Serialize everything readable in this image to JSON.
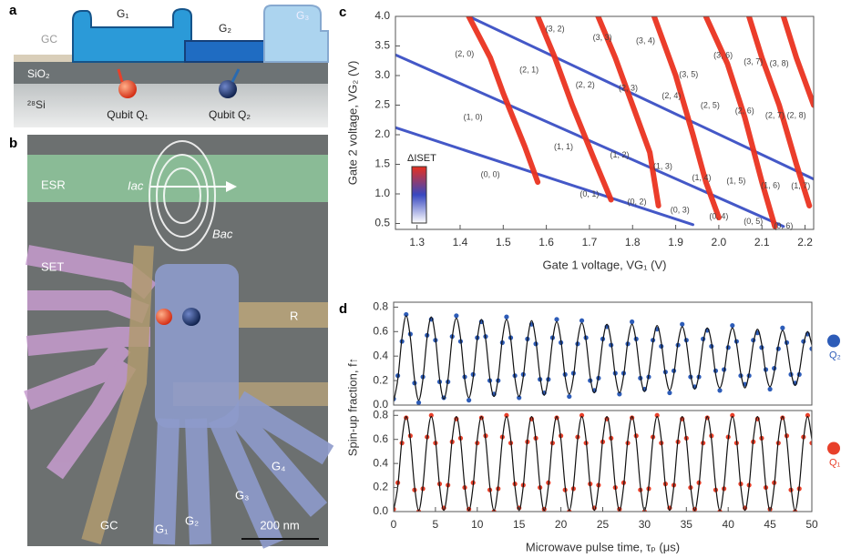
{
  "figure": {
    "panels": [
      "a",
      "b",
      "c",
      "d"
    ],
    "panel_a": {
      "gc": "GC",
      "g1": "G₁",
      "g2": "G₂",
      "g3": "G₃",
      "sio2": "SiO₂",
      "si": "²⁸Si",
      "q1": "Qubit Q₁",
      "q2": "Qubit Q₂"
    },
    "panel_b": {
      "esr": "ESR",
      "iac": "Iac",
      "bac": "Bac",
      "set": "SET",
      "r": "R",
      "g4": "G₄",
      "g3": "G₃",
      "g2": "G₂",
      "g1": "G₁",
      "gc": "GC",
      "scale": "200 nm"
    }
  },
  "chart_data": [
    {
      "type": "line",
      "xlabel": "Gate 1 voltage, VG₁ (V)",
      "ylabel": "Gate 2 voltage, VG₂ (V)",
      "xlim": [
        1.25,
        2.22
      ],
      "ylim": [
        0.4,
        4.0
      ],
      "xticks": [
        1.3,
        1.4,
        1.5,
        1.6,
        1.7,
        1.8,
        1.9,
        {
          "value": 2,
          "label": "2.0"
        },
        2.1,
        2.2
      ],
      "yticks": [
        0.5,
        {
          "value": 1,
          "label": "1.0"
        },
        1.5,
        {
          "value": 2,
          "label": "2.0"
        },
        2.5,
        {
          "value": 3,
          "label": "3.0"
        },
        3.5,
        {
          "value": 4,
          "label": "4.0"
        }
      ],
      "colorbar": {
        "label": "ΔISET",
        "colors": [
          "#e8301e",
          "#3848c0",
          "#ffffff"
        ]
      },
      "series": [
        {
          "color": "#3a4fc4",
          "width": 3,
          "x": [
            1.25,
            1.94
          ],
          "values": [
            2.12,
            0.48
          ]
        },
        {
          "color": "#3a4fc4",
          "width": 3,
          "x": [
            1.25,
            2.15
          ],
          "values": [
            3.35,
            0.45
          ]
        },
        {
          "color": "#3a4fc4",
          "width": 3,
          "x": [
            1.42,
            2.22
          ],
          "values": [
            4.0,
            1.25
          ]
        },
        {
          "color": "#ea3320",
          "width": 6,
          "x": [
            1.42,
            1.47,
            1.5,
            1.55,
            1.58
          ],
          "values": [
            4.0,
            3.3,
            2.7,
            1.8,
            1.2
          ]
        },
        {
          "color": "#ea3320",
          "width": 6,
          "x": [
            1.58,
            1.62,
            1.66,
            1.71,
            1.75
          ],
          "values": [
            4.0,
            3.3,
            2.5,
            1.6,
            0.9
          ]
        },
        {
          "color": "#ea3320",
          "width": 6,
          "x": [
            1.72,
            1.76,
            1.8,
            1.84,
            1.86
          ],
          "values": [
            4.0,
            3.3,
            2.5,
            1.7,
            0.8
          ]
        },
        {
          "color": "#ea3320",
          "width": 6,
          "x": [
            1.85,
            1.9,
            1.94,
            1.97,
            2.0
          ],
          "values": [
            4.0,
            3.0,
            2.0,
            1.2,
            0.6
          ]
        },
        {
          "color": "#ea3320",
          "width": 6,
          "x": [
            1.97,
            2.02,
            2.06,
            2.1,
            2.13
          ],
          "values": [
            4.0,
            3.2,
            2.3,
            1.2,
            0.45
          ]
        },
        {
          "color": "#ea3320",
          "width": 6,
          "x": [
            2.07,
            2.1,
            2.14,
            2.18,
            2.21
          ],
          "values": [
            4.0,
            3.3,
            2.5,
            1.5,
            0.8
          ]
        },
        {
          "color": "#ea3320",
          "width": 6,
          "x": [
            2.15,
            2.18,
            2.22
          ],
          "values": [
            4.0,
            3.3,
            2.5
          ]
        }
      ],
      "annotations": [
        {
          "text": "(3, 2)",
          "x": 1.62,
          "y": 3.78
        },
        {
          "text": "(3, 3)",
          "x": 1.73,
          "y": 3.64
        },
        {
          "text": "(3, 4)",
          "x": 1.83,
          "y": 3.58
        },
        {
          "text": "(2, 0)",
          "x": 1.41,
          "y": 3.36
        },
        {
          "text": "(2, 1)",
          "x": 1.56,
          "y": 3.09
        },
        {
          "text": "(3, 5)",
          "x": 1.93,
          "y": 3.01
        },
        {
          "text": "(3, 6)",
          "x": 2.01,
          "y": 3.34
        },
        {
          "text": "(3, 7)",
          "x": 2.08,
          "y": 3.23
        },
        {
          "text": "(3, 8)",
          "x": 2.14,
          "y": 3.2
        },
        {
          "text": "(2, 2)",
          "x": 1.69,
          "y": 2.84
        },
        {
          "text": "(2, 3)",
          "x": 1.79,
          "y": 2.78
        },
        {
          "text": "(2, 4)",
          "x": 1.89,
          "y": 2.65
        },
        {
          "text": "(2, 5)",
          "x": 1.98,
          "y": 2.49
        },
        {
          "text": "(2, 6)",
          "x": 2.06,
          "y": 2.4
        },
        {
          "text": "(2, 7)",
          "x": 2.13,
          "y": 2.32
        },
        {
          "text": "(2, 8)",
          "x": 2.18,
          "y": 2.32
        },
        {
          "text": "(1, 0)",
          "x": 1.43,
          "y": 2.29
        },
        {
          "text": "(1, 1)",
          "x": 1.64,
          "y": 1.79
        },
        {
          "text": "(1, 2)",
          "x": 1.77,
          "y": 1.65
        },
        {
          "text": "(1, 3)",
          "x": 1.87,
          "y": 1.46
        },
        {
          "text": "(1, 4)",
          "x": 1.96,
          "y": 1.27
        },
        {
          "text": "(1, 5)",
          "x": 2.04,
          "y": 1.21
        },
        {
          "text": "(1, 6)",
          "x": 2.12,
          "y": 1.14
        },
        {
          "text": "(1, 7)",
          "x": 2.19,
          "y": 1.13
        },
        {
          "text": "(0, 0)",
          "x": 1.47,
          "y": 1.32
        },
        {
          "text": "(0, 1)",
          "x": 1.7,
          "y": 0.99
        },
        {
          "text": "(0, 2)",
          "x": 1.81,
          "y": 0.86
        },
        {
          "text": "(0, 3)",
          "x": 1.91,
          "y": 0.72
        },
        {
          "text": "(0, 4)",
          "x": 2.0,
          "y": 0.61
        },
        {
          "text": "(0, 5)",
          "x": 2.08,
          "y": 0.53
        },
        {
          "text": "(0, 6)",
          "x": 2.15,
          "y": 0.45
        }
      ]
    },
    {
      "type": "scatter",
      "ylabel": "Spin-up fraction, f↑",
      "xlim": [
        0,
        50
      ],
      "ylim": [
        0,
        0.84
      ],
      "yticks": [
        {
          "value": 0,
          "label": "0.0"
        },
        0.2,
        0.4,
        0.6,
        0.8
      ],
      "x": [
        0,
        0.5,
        1,
        1.5,
        2,
        2.5,
        3,
        3.5,
        4,
        4.5,
        5,
        5.5,
        6,
        6.5,
        7,
        7.5,
        8,
        8.5,
        9,
        9.5,
        10,
        10.5,
        11,
        11.5,
        12,
        12.5,
        13,
        13.5,
        14,
        14.5,
        15,
        15.5,
        16,
        16.5,
        17,
        17.5,
        18,
        18.5,
        19,
        19.5,
        20,
        20.5,
        21,
        21.5,
        22,
        22.5,
        23,
        23.5,
        24,
        24.5,
        25,
        25.5,
        26,
        26.5,
        27,
        27.5,
        28,
        28.5,
        29,
        29.5,
        30,
        30.5,
        31,
        31.5,
        32,
        32.5,
        33,
        33.5,
        34,
        34.5,
        35,
        35.5,
        36,
        36.5,
        37,
        37.5,
        38,
        38.5,
        39,
        39.5,
        40,
        40.5,
        41,
        41.5,
        42,
        42.5,
        43,
        43.5,
        44,
        44.5,
        45,
        45.5,
        46,
        46.5,
        47,
        47.5,
        48,
        48.5,
        49,
        49.5,
        50
      ],
      "series": [
        {
          "name": "Q₂",
          "color": "#2d5cb8",
          "style": "dot",
          "values": [
            0.05,
            0.24,
            0.52,
            0.74,
            0.58,
            0.18,
            0.02,
            0.23,
            0.57,
            0.7,
            0.53,
            0.19,
            0.06,
            0.19,
            0.56,
            0.73,
            0.52,
            0.23,
            0.04,
            0.25,
            0.55,
            0.68,
            0.56,
            0.2,
            0.09,
            0.2,
            0.51,
            0.72,
            0.55,
            0.24,
            0.06,
            0.25,
            0.54,
            0.66,
            0.5,
            0.21,
            0.1,
            0.21,
            0.55,
            0.7,
            0.51,
            0.25,
            0.07,
            0.26,
            0.5,
            0.69,
            0.55,
            0.2,
            0.12,
            0.22,
            0.54,
            0.64,
            0.49,
            0.26,
            0.09,
            0.26,
            0.5,
            0.68,
            0.54,
            0.22,
            0.13,
            0.23,
            0.53,
            0.62,
            0.48,
            0.27,
            0.1,
            0.28,
            0.49,
            0.66,
            0.53,
            0.23,
            0.15,
            0.23,
            0.54,
            0.61,
            0.48,
            0.28,
            0.12,
            0.29,
            0.47,
            0.65,
            0.52,
            0.24,
            0.17,
            0.24,
            0.53,
            0.59,
            0.47,
            0.29,
            0.13,
            0.3,
            0.46,
            0.63,
            0.51,
            0.25,
            0.18,
            0.25,
            0.52,
            0.58,
            0.46
          ]
        },
        {
          "color": "#111111",
          "style": "line",
          "values": [
            0.03,
            0.21,
            0.55,
            0.73,
            0.55,
            0.21,
            0.04,
            0.21,
            0.55,
            0.72,
            0.55,
            0.21,
            0.05,
            0.21,
            0.55,
            0.71,
            0.55,
            0.21,
            0.06,
            0.22,
            0.54,
            0.7,
            0.54,
            0.22,
            0.07,
            0.22,
            0.54,
            0.7,
            0.54,
            0.22,
            0.07,
            0.23,
            0.53,
            0.69,
            0.53,
            0.23,
            0.08,
            0.23,
            0.53,
            0.68,
            0.53,
            0.23,
            0.09,
            0.23,
            0.53,
            0.67,
            0.53,
            0.23,
            0.1,
            0.24,
            0.52,
            0.66,
            0.52,
            0.24,
            0.1,
            0.24,
            0.52,
            0.66,
            0.52,
            0.24,
            0.11,
            0.25,
            0.51,
            0.65,
            0.51,
            0.25,
            0.12,
            0.25,
            0.51,
            0.64,
            0.51,
            0.25,
            0.13,
            0.25,
            0.51,
            0.63,
            0.51,
            0.25,
            0.14,
            0.26,
            0.5,
            0.63,
            0.5,
            0.26,
            0.14,
            0.26,
            0.5,
            0.62,
            0.5,
            0.26,
            0.15,
            0.27,
            0.49,
            0.61,
            0.49,
            0.27,
            0.16,
            0.27,
            0.49,
            0.6,
            0.49
          ]
        }
      ]
    },
    {
      "type": "scatter",
      "xlabel": "Microwave pulse time, τₚ (μs)",
      "xlim": [
        0,
        50
      ],
      "ylim": [
        0,
        0.84
      ],
      "xticks": [
        0,
        5,
        10,
        15,
        20,
        25,
        30,
        35,
        40,
        45,
        50
      ],
      "yticks": [
        {
          "value": 0,
          "label": "0.0"
        },
        0.2,
        0.4,
        0.6,
        0.8
      ],
      "x": [
        0,
        0.5,
        1,
        1.5,
        2,
        2.5,
        3,
        3.5,
        4,
        4.5,
        5,
        5.5,
        6,
        6.5,
        7,
        7.5,
        8,
        8.5,
        9,
        9.5,
        10,
        10.5,
        11,
        11.5,
        12,
        12.5,
        13,
        13.5,
        14,
        14.5,
        15,
        15.5,
        16,
        16.5,
        17,
        17.5,
        18,
        18.5,
        19,
        19.5,
        20,
        20.5,
        21,
        21.5,
        22,
        22.5,
        23,
        23.5,
        24,
        24.5,
        25,
        25.5,
        26,
        26.5,
        27,
        27.5,
        28,
        28.5,
        29,
        29.5,
        30,
        30.5,
        31,
        31.5,
        32,
        32.5,
        33,
        33.5,
        34,
        34.5,
        35,
        35.5,
        36,
        36.5,
        37,
        37.5,
        38,
        38.5,
        39,
        39.5,
        40,
        40.5,
        41,
        41.5,
        42,
        42.5,
        43,
        43.5,
        44,
        44.5,
        45,
        45.5,
        46,
        46.5,
        47,
        47.5,
        48,
        48.5,
        49,
        49.5,
        50
      ],
      "series": [
        {
          "name": "Q₁",
          "color": "#e8402a",
          "style": "dot",
          "values": [
            0.02,
            0.24,
            0.57,
            0.78,
            0.63,
            0.18,
            0.0,
            0.19,
            0.62,
            0.8,
            0.57,
            0.23,
            0.03,
            0.22,
            0.58,
            0.77,
            0.61,
            0.2,
            0.02,
            0.24,
            0.57,
            0.78,
            0.63,
            0.18,
            0.0,
            0.19,
            0.62,
            0.8,
            0.57,
            0.23,
            0.03,
            0.22,
            0.58,
            0.77,
            0.61,
            0.2,
            0.02,
            0.24,
            0.57,
            0.78,
            0.63,
            0.18,
            0.0,
            0.19,
            0.62,
            0.8,
            0.57,
            0.23,
            0.03,
            0.22,
            0.58,
            0.77,
            0.61,
            0.2,
            0.02,
            0.24,
            0.57,
            0.78,
            0.63,
            0.18,
            0.0,
            0.19,
            0.62,
            0.8,
            0.57,
            0.23,
            0.03,
            0.22,
            0.58,
            0.77,
            0.61,
            0.2,
            0.02,
            0.24,
            0.57,
            0.78,
            0.63,
            0.18,
            0.0,
            0.19,
            0.62,
            0.8,
            0.57,
            0.23,
            0.03,
            0.22,
            0.58,
            0.77,
            0.61,
            0.2,
            0.02,
            0.24,
            0.57,
            0.78,
            0.63,
            0.18,
            0.0,
            0.19,
            0.62,
            0.8,
            0.57
          ]
        },
        {
          "color": "#111111",
          "style": "line",
          "values": [
            0.01,
            0.21,
            0.6,
            0.79,
            0.6,
            0.21,
            0.01,
            0.21,
            0.6,
            0.79,
            0.6,
            0.21,
            0.01,
            0.21,
            0.6,
            0.79,
            0.6,
            0.21,
            0.01,
            0.21,
            0.6,
            0.79,
            0.6,
            0.21,
            0.01,
            0.21,
            0.6,
            0.79,
            0.6,
            0.21,
            0.01,
            0.21,
            0.6,
            0.79,
            0.6,
            0.21,
            0.01,
            0.21,
            0.6,
            0.79,
            0.6,
            0.21,
            0.01,
            0.21,
            0.6,
            0.79,
            0.6,
            0.21,
            0.01,
            0.21,
            0.6,
            0.79,
            0.6,
            0.21,
            0.01,
            0.21,
            0.6,
            0.79,
            0.6,
            0.21,
            0.01,
            0.21,
            0.6,
            0.79,
            0.6,
            0.21,
            0.01,
            0.21,
            0.6,
            0.79,
            0.6,
            0.21,
            0.01,
            0.21,
            0.6,
            0.79,
            0.6,
            0.21,
            0.01,
            0.21,
            0.6,
            0.79,
            0.6,
            0.21,
            0.01,
            0.21,
            0.6,
            0.79,
            0.6,
            0.21,
            0.01,
            0.21,
            0.6,
            0.79,
            0.6,
            0.21,
            0.01,
            0.21,
            0.6,
            0.79,
            0.6
          ]
        }
      ]
    }
  ]
}
